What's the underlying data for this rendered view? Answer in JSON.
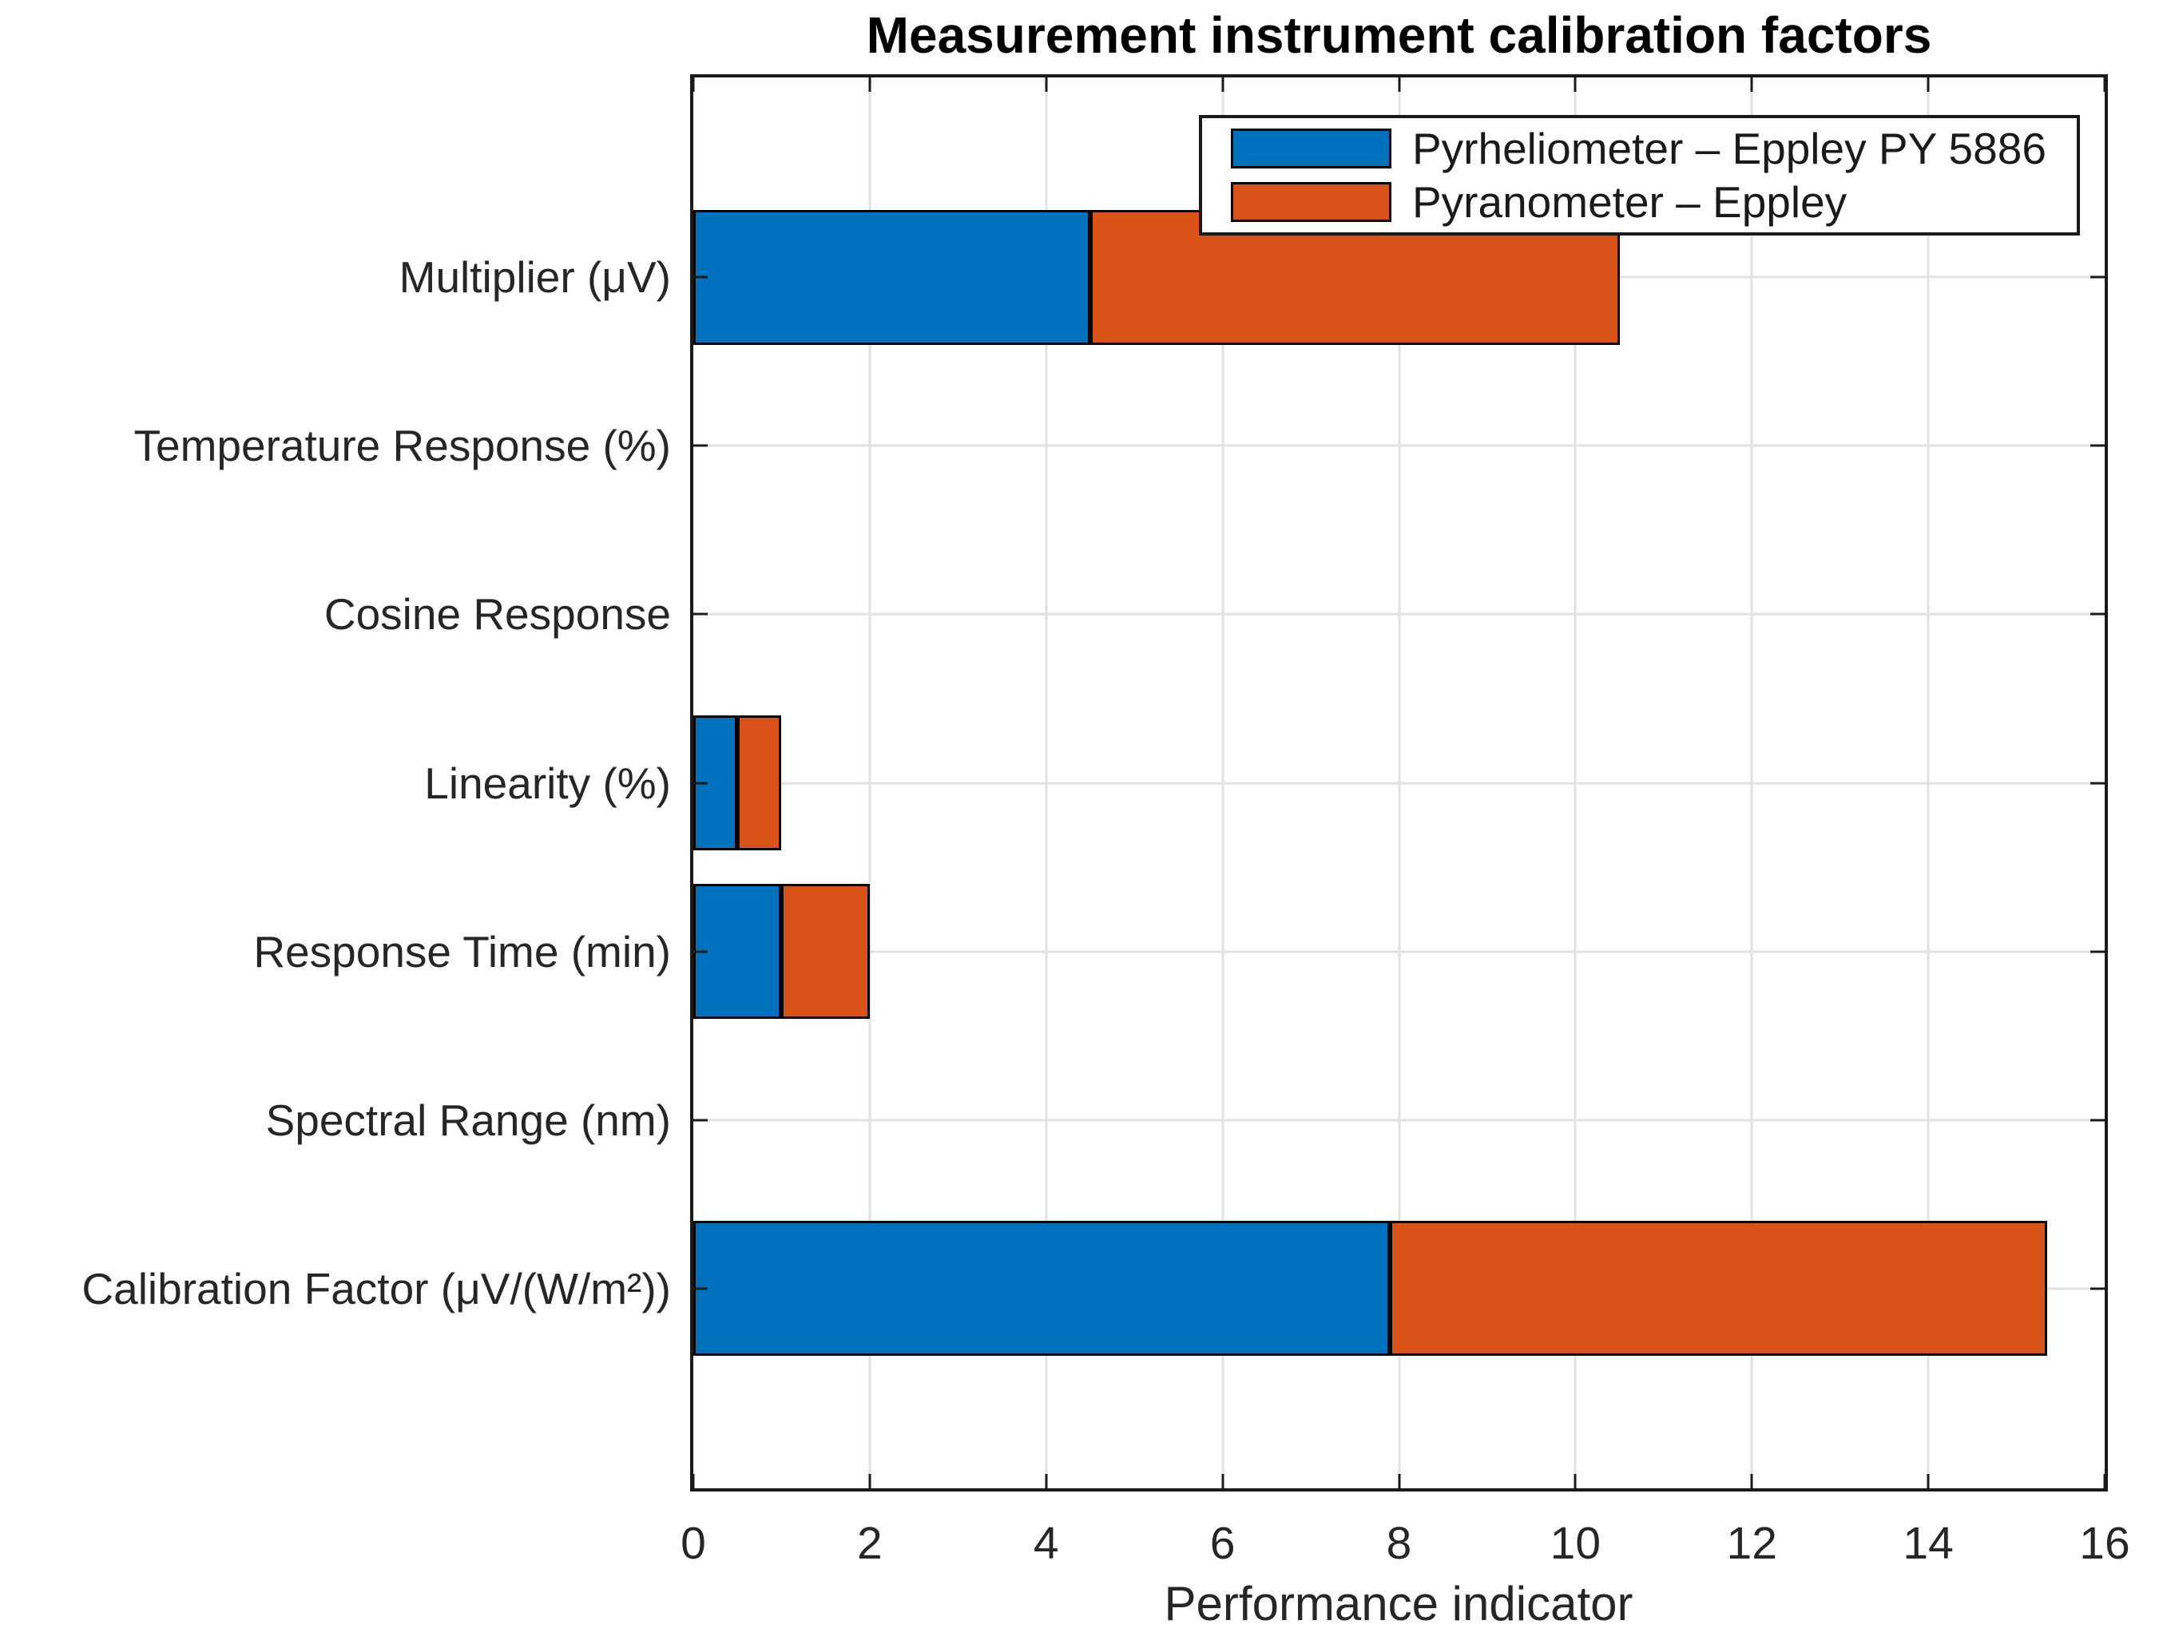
{
  "chart_data": {
    "type": "bar",
    "orientation": "horizontal",
    "stacked": true,
    "title": "Measurement instrument calibration factors",
    "xlabel": "Performance indicator",
    "ylabel": "",
    "xlim": [
      0,
      16
    ],
    "xticks": [
      0,
      2,
      4,
      6,
      8,
      10,
      12,
      14,
      16
    ],
    "grid": true,
    "legend_position": "top-right-inside",
    "categories": [
      "Multiplier (μV)",
      "Temperature Response (%)",
      "Cosine Response",
      "Linearity (%)",
      "Response Time (min)",
      "Spectral Range (nm)",
      "Calibration Factor (μV/(W/m²))"
    ],
    "series": [
      {
        "key": "pyrheliometer",
        "name": "Pyrheliometer – Eppley PY 5886",
        "color": "#0072BD",
        "values": [
          4.5,
          0,
          0,
          0.5,
          1,
          0,
          7.9
        ]
      },
      {
        "key": "pyranometer",
        "name": "Pyranometer – Eppley",
        "color": "#D95319",
        "values": [
          6,
          0,
          0,
          0.5,
          1,
          0,
          7.45
        ]
      }
    ],
    "colors": {
      "axis": "#1a1a1a",
      "grid": "#e2e2e2",
      "tick_label": "#262626",
      "bar_edge": "#000000"
    }
  }
}
